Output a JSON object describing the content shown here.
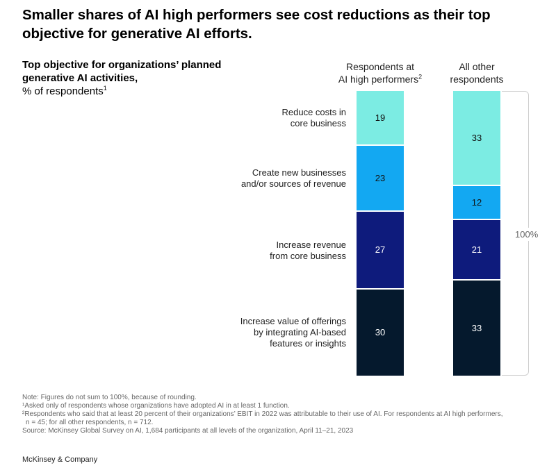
{
  "title": "Smaller shares of AI high performers see cost reductions as their top objective for generative AI efforts.",
  "subtitle": {
    "bold": "Top objective for organizations’ planned generative AI activities,",
    "normal": "% of respondents",
    "normal_sup": "1"
  },
  "chart_data": {
    "type": "bar",
    "stacked": true,
    "title": "Top objective for organizations’ planned generative AI activities, % of respondents",
    "categories": [
      "Respondents at AI high performers",
      "All other respondents"
    ],
    "category_labels": [
      {
        "line1": "Respondents at",
        "line2": "AI high performers",
        "sup": "2"
      },
      {
        "line1": "All other",
        "line2": "respondents",
        "sup": ""
      }
    ],
    "series": [
      {
        "name": "Reduce costs in core business",
        "lines": [
          "Reduce costs in",
          "core business"
        ],
        "color": "#7CECE3",
        "text_color": "#111111",
        "values": [
          19,
          33
        ]
      },
      {
        "name": "Create new businesses and/or sources of revenue",
        "lines": [
          "Create new businesses",
          "and/or sources of revenue"
        ],
        "color": "#13A8F2",
        "text_color": "#111111",
        "values": [
          23,
          12
        ]
      },
      {
        "name": "Increase revenue from core business",
        "lines": [
          "Increase revenue",
          "from core business"
        ],
        "color": "#0E1B7C",
        "text_color": "#ffffff",
        "values": [
          27,
          21
        ]
      },
      {
        "name": "Increase value of offerings by integrating AI-based features or insights",
        "lines": [
          "Increase value of offerings",
          "by integrating AI-based",
          "features or insights"
        ],
        "color": "#05192D",
        "text_color": "#ffffff",
        "values": [
          30,
          33
        ]
      }
    ],
    "bracket_label": "100%"
  },
  "notes": {
    "line1": "Note: Figures do not sum to 100%, because of rounding.",
    "line2": "¹Asked only of respondents whose organizations have adopted AI in at least 1 function.",
    "line3": "²Respondents who said that at least 20 percent of their organizations’ EBIT in 2022 was attributable to their use of AI. For respondents at AI high performers,",
    "line4": "n = 45; for all other respondents, n = 712.",
    "line5": "Source: McKinsey Global Survey on AI, 1,684 participants at all levels of the organization, April 11–21, 2023"
  },
  "brand": "McKinsey & Company"
}
